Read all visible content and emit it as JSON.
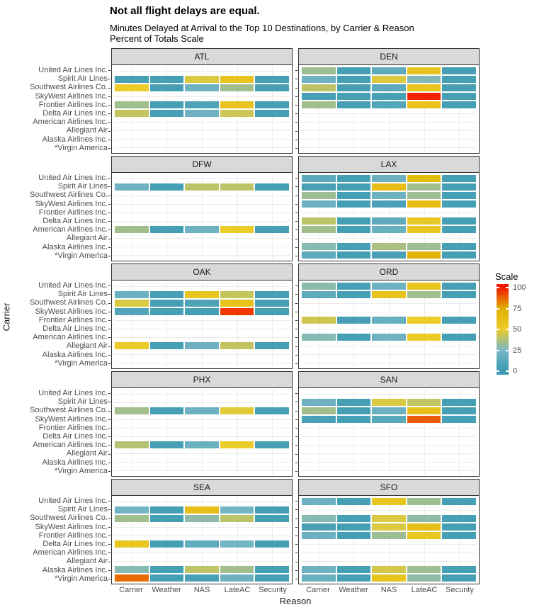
{
  "chart_data": {
    "type": "heatmap",
    "title": "Not all flight delays are equal.",
    "subtitle_line1": "Minutes Delayed at Arrival to the Top 10 Destinations, by Carrier & Reason",
    "subtitle_line2": "Percent of Totals Scale",
    "xlabel": "Reason",
    "ylabel": "Carrier",
    "x_categories": [
      "Carrier",
      "Weather",
      "NAS",
      "LateAC",
      "Security"
    ],
    "y_categories": [
      "United Air Lines Inc.",
      "Spirit Air Lines",
      "Southwest Airlines Co.",
      "SkyWest Airlines Inc.",
      "Frontier Airlines Inc.",
      "Delta Air Lines Inc.",
      "American Airlines Inc.",
      "Allegiant Air",
      "Alaska Airlines Inc.",
      "*Virgin America"
    ],
    "value_range": [
      0,
      100
    ],
    "grid": true,
    "legend_position": "right",
    "legend": {
      "title": "Scale",
      "ticks": [
        100,
        75,
        50,
        25,
        0
      ],
      "gradient_stops": [
        {
          "value": 0,
          "color": "#3B9AB2"
        },
        {
          "value": 25,
          "color": "#78B7C5"
        },
        {
          "value": 50,
          "color": "#EBCC2A"
        },
        {
          "value": 75,
          "color": "#E1AF00"
        },
        {
          "value": 100,
          "color": "#F21A00"
        }
      ]
    },
    "facets": [
      {
        "name": "ATL",
        "cells": [
          {
            "carrier": "Spirit Air Lines",
            "values": [
              5,
              4,
              46,
              58,
              4
            ]
          },
          {
            "carrier": "Southwest Airlines Co.",
            "values": [
              50,
              4,
              21,
              34,
              4
            ]
          },
          {
            "carrier": "Frontier Airlines Inc.",
            "values": [
              34,
              4,
              8,
              58,
              4
            ]
          },
          {
            "carrier": "Delta Air Lines Inc.",
            "values": [
              41,
              4,
              21,
              43,
              4
            ]
          }
        ]
      },
      {
        "name": "DEN",
        "cells": [
          {
            "carrier": "United Air Lines Inc.",
            "values": [
              33,
              4,
              14,
              57,
              4
            ]
          },
          {
            "carrier": "Spirit Air Lines",
            "values": [
              21,
              4,
              47,
              27,
              4
            ]
          },
          {
            "carrier": "Southwest Airlines Co.",
            "values": [
              40,
              4,
              13,
              57,
              4
            ]
          },
          {
            "carrier": "SkyWest Airlines Inc.",
            "values": [
              4,
              4,
              4,
              99,
              4
            ]
          },
          {
            "carrier": "Frontier Airlines Inc.",
            "values": [
              34,
              4,
              10,
              58,
              4
            ]
          }
        ]
      },
      {
        "name": "DFW",
        "cells": [
          {
            "carrier": "Spirit Air Lines",
            "values": [
              21,
              4,
              40,
              40,
              4
            ]
          },
          {
            "carrier": "American Airlines Inc.",
            "values": [
              34,
              4,
              21,
              51,
              4
            ]
          }
        ]
      },
      {
        "name": "LAX",
        "cells": [
          {
            "carrier": "United Air Lines Inc.",
            "values": [
              13,
              4,
              20,
              64,
              4
            ]
          },
          {
            "carrier": "Spirit Air Lines",
            "values": [
              5,
              4,
              62,
              34,
              4
            ]
          },
          {
            "carrier": "Southwest Airlines Co.",
            "values": [
              33,
              4,
              21,
              33,
              4
            ]
          },
          {
            "carrier": "SkyWest Airlines Inc.",
            "values": [
              20,
              4,
              6,
              63,
              4
            ]
          },
          {
            "carrier": "Delta Air Lines Inc.",
            "values": [
              40,
              4,
              14,
              54,
              4
            ]
          },
          {
            "carrier": "American Airlines Inc.",
            "values": [
              34,
              4,
              19,
              56,
              4
            ]
          },
          {
            "carrier": "Alaska Airlines Inc.",
            "values": [
              28,
              4,
              36,
              33,
              4
            ]
          },
          {
            "carrier": "*Virgin America",
            "values": [
              14,
              4,
              6,
              72,
              4
            ]
          }
        ]
      },
      {
        "name": "OAK",
        "cells": [
          {
            "carrier": "Spirit Air Lines",
            "values": [
              20,
              4,
              56,
              42,
              4
            ]
          },
          {
            "carrier": "Southwest Airlines Co.",
            "values": [
              46,
              4,
              8,
              59,
              4
            ]
          },
          {
            "carrier": "SkyWest Airlines Inc.",
            "values": [
              9,
              4,
              4,
              95,
              4
            ]
          },
          {
            "carrier": "Allegiant Air",
            "values": [
              51,
              4,
              21,
              41,
              4
            ]
          }
        ]
      },
      {
        "name": "ORD",
        "cells": [
          {
            "carrier": "United Air Lines Inc.",
            "values": [
              29,
              4,
              21,
              57,
              4
            ]
          },
          {
            "carrier": "Spirit Air Lines",
            "values": [
              14,
              4,
              58,
              34,
              4
            ]
          },
          {
            "carrier": "Frontier Airlines Inc.",
            "values": [
              44,
              4,
              18,
              50,
              4
            ]
          },
          {
            "carrier": "American Airlines Inc.",
            "values": [
              28,
              4,
              21,
              52,
              4
            ]
          }
        ]
      },
      {
        "name": "PHX",
        "cells": [
          {
            "carrier": "Southwest Airlines Co.",
            "values": [
              34,
              4,
              21,
              48,
              4
            ]
          },
          {
            "carrier": "American Airlines Inc.",
            "values": [
              38,
              4,
              19,
              50,
              4
            ]
          }
        ]
      },
      {
        "name": "SAN",
        "cells": [
          {
            "carrier": "Spirit Air Lines",
            "values": [
              21,
              4,
              46,
              41,
              4
            ]
          },
          {
            "carrier": "Southwest Airlines Co.",
            "values": [
              34,
              4,
              20,
              60,
              4
            ]
          },
          {
            "carrier": "SkyWest Airlines Inc.",
            "values": [
              6,
              4,
              12,
              89,
              4
            ]
          }
        ]
      },
      {
        "name": "SEA",
        "cells": [
          {
            "carrier": "Spirit Air Lines",
            "values": [
              22,
              4,
              61,
              23,
              4
            ]
          },
          {
            "carrier": "Southwest Airlines Co.",
            "values": [
              34,
              4,
              30,
              40,
              4
            ]
          },
          {
            "carrier": "Delta Air Lines Inc.",
            "values": [
              56,
              4,
              15,
              23,
              4
            ]
          },
          {
            "carrier": "Alaska Airlines Inc.",
            "values": [
              28,
              4,
              40,
              34,
              4
            ]
          },
          {
            "carrier": "*Virgin America",
            "values": [
              86,
              4,
              6,
              21,
              4
            ]
          }
        ]
      },
      {
        "name": "SFO",
        "cells": [
          {
            "carrier": "United Air Lines Inc.",
            "values": [
              20,
              4,
              56,
              33,
              4
            ]
          },
          {
            "carrier": "Southwest Airlines Co.",
            "values": [
              28,
              4,
              46,
              30,
              4
            ]
          },
          {
            "carrier": "SkyWest Airlines Inc.",
            "values": [
              6,
              4,
              46,
              62,
              4
            ]
          },
          {
            "carrier": "Frontier Airlines Inc.",
            "values": [
              20,
              4,
              33,
              55,
              4
            ]
          },
          {
            "carrier": "Alaska Airlines Inc.",
            "values": [
              21,
              4,
              45,
              33,
              4
            ]
          },
          {
            "carrier": "*Virgin America",
            "values": [
              19,
              4,
              57,
              30,
              4
            ]
          }
        ]
      }
    ]
  }
}
